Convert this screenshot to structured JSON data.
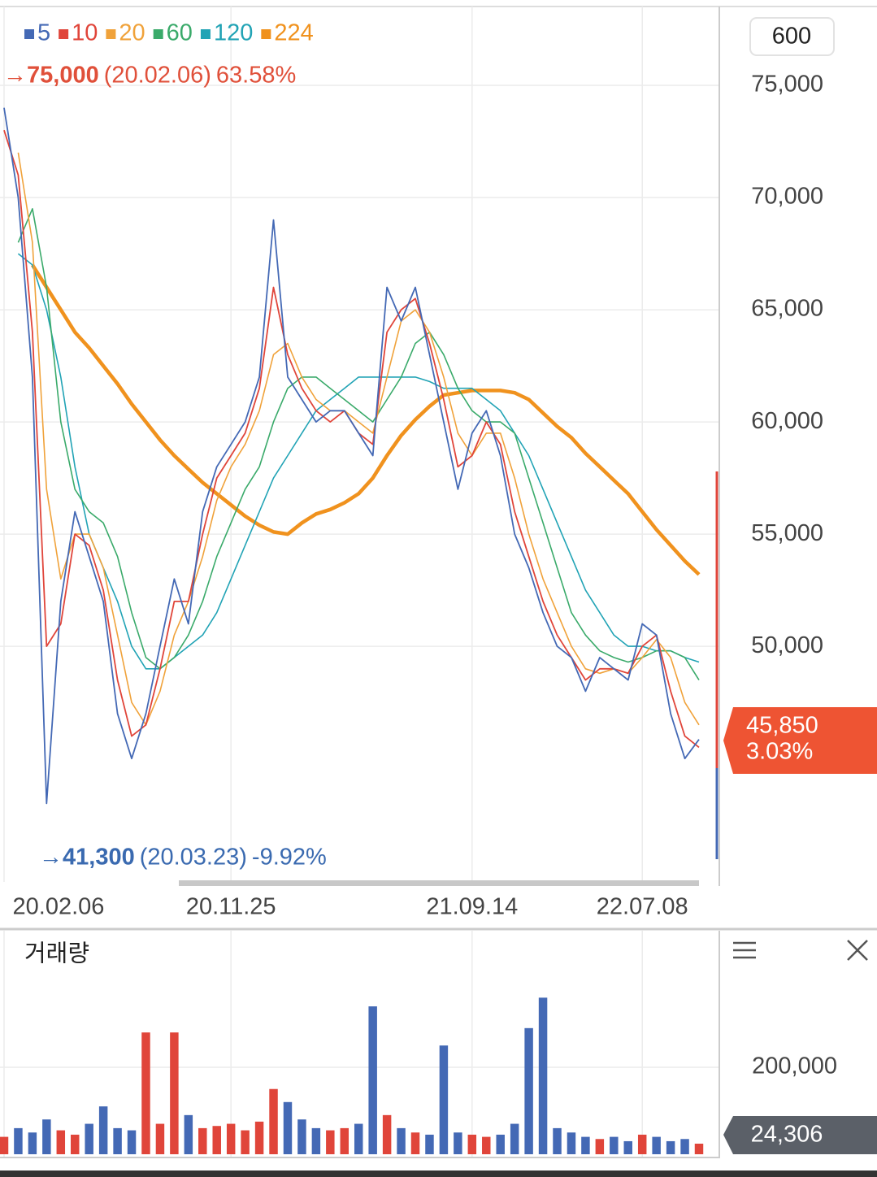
{
  "chart_data": {
    "type": "line",
    "period": "600",
    "categories": [
      "20.02.06",
      null,
      null,
      null,
      null,
      null,
      null,
      null,
      null,
      null,
      null,
      null,
      null,
      null,
      null,
      null,
      "20.11.25",
      null,
      null,
      null,
      null,
      null,
      null,
      null,
      null,
      null,
      null,
      null,
      null,
      null,
      null,
      null,
      null,
      "21.09.14",
      null,
      null,
      null,
      null,
      null,
      null,
      null,
      null,
      null,
      null,
      null,
      "22.07.08",
      null,
      null,
      null,
      null
    ],
    "ylim": [
      39500,
      78442
    ],
    "yticks": [
      {
        "value": 50000,
        "label": "50,000"
      },
      {
        "value": 55000,
        "label": "55,000"
      },
      {
        "value": 60000,
        "label": "60,000"
      },
      {
        "value": 65000,
        "label": "65,000"
      },
      {
        "value": 70000,
        "label": "70,000"
      },
      {
        "value": 75000,
        "label": "75,000"
      }
    ],
    "grid": true,
    "series": [
      {
        "name": "5",
        "color": "#4469b5",
        "values": [
          74000,
          70000,
          62000,
          43000,
          52000,
          56000,
          54000,
          52000,
          47000,
          45000,
          47000,
          50000,
          53000,
          51000,
          56000,
          58000,
          59000,
          60000,
          62000,
          69000,
          62000,
          61000,
          60000,
          60500,
          60500,
          59500,
          58500,
          66000,
          64500,
          66000,
          63000,
          60000,
          57000,
          59500,
          60500,
          58500,
          55000,
          53500,
          51500,
          50000,
          49500,
          48000,
          49500,
          49000,
          48500,
          51000,
          50500,
          47000,
          45000,
          45850
        ]
      },
      {
        "name": "10",
        "color": "#e0453a",
        "values": [
          73000,
          71000,
          64000,
          50000,
          51000,
          55000,
          54500,
          52500,
          48500,
          46000,
          46500,
          49000,
          52000,
          52000,
          55000,
          57500,
          58500,
          59500,
          61500,
          66000,
          63000,
          61500,
          60500,
          60000,
          60500,
          59500,
          59000,
          64000,
          65000,
          65500,
          63500,
          61000,
          58000,
          58500,
          60000,
          59000,
          56000,
          54000,
          52000,
          50500,
          49500,
          48500,
          49000,
          49000,
          48800,
          50000,
          50500,
          48000,
          46000,
          45500
        ]
      },
      {
        "name": "20",
        "color": "#f0a23a",
        "values": [
          null,
          72000,
          68000,
          57000,
          53000,
          55000,
          55000,
          53500,
          50500,
          47500,
          46500,
          48000,
          50500,
          52000,
          54000,
          56500,
          58000,
          59000,
          60500,
          63000,
          63500,
          62000,
          61000,
          60500,
          60500,
          60000,
          59500,
          62000,
          64500,
          65000,
          64000,
          62000,
          59500,
          58500,
          59500,
          59500,
          57500,
          55000,
          53000,
          51500,
          50000,
          49000,
          48800,
          49000,
          48800,
          49500,
          50300,
          49500,
          47500,
          46500
        ]
      },
      {
        "name": "60",
        "color": "#3aaa6a",
        "values": [
          null,
          68000,
          69500,
          66000,
          60000,
          57000,
          56000,
          55500,
          54000,
          51500,
          49500,
          49000,
          49500,
          50500,
          52000,
          54000,
          55500,
          57000,
          58000,
          60000,
          61500,
          62000,
          62000,
          61500,
          61000,
          60500,
          60000,
          61000,
          62000,
          63500,
          64000,
          63000,
          61500,
          60500,
          60000,
          60000,
          59500,
          57500,
          55500,
          53500,
          51500,
          50500,
          49800,
          49500,
          49300,
          49500,
          49800,
          49800,
          49500,
          48500
        ]
      },
      {
        "name": "120",
        "color": "#21a3b5",
        "values": [
          null,
          67500,
          67000,
          65000,
          62000,
          58000,
          55000,
          53500,
          52000,
          50000,
          49000,
          49000,
          49500,
          50000,
          50500,
          51500,
          53000,
          54500,
          56000,
          57500,
          58500,
          59500,
          60500,
          61000,
          61500,
          62000,
          62000,
          62000,
          62000,
          62000,
          61800,
          61500,
          61500,
          61500,
          61000,
          60500,
          59500,
          58500,
          57000,
          55500,
          54000,
          52500,
          51500,
          50500,
          50000,
          50000,
          49800,
          49800,
          49500,
          49300
        ]
      },
      {
        "name": "224",
        "color": "#f0921e",
        "values": [
          null,
          null,
          67000,
          66000,
          65000,
          64000,
          63300,
          62500,
          61700,
          60800,
          60000,
          59200,
          58500,
          57900,
          57300,
          56800,
          56300,
          55800,
          55400,
          55100,
          55000,
          55500,
          55900,
          56100,
          56400,
          56800,
          57500,
          58500,
          59400,
          60100,
          60700,
          61200,
          61300,
          61400,
          61400,
          61400,
          61300,
          61000,
          60400,
          59800,
          59300,
          58600,
          58000,
          57400,
          56800,
          56000,
          55200,
          54500,
          53800,
          53200
        ]
      }
    ],
    "max_label": {
      "price": "→75,000",
      "date": "(20.02.06)",
      "change": "63.58%"
    },
    "min_label": {
      "price": "→41,300",
      "date": "(20.03.23)",
      "change": "-9.92%"
    },
    "current": {
      "price": "45,850",
      "change": "3.03%"
    },
    "volume": {
      "title": "거래량",
      "ylim": [
        0,
        504600
      ],
      "yticks": [
        {
          "value": 200000,
          "label": "200,000"
        }
      ],
      "up_color": "#e0453a",
      "down_color": "#4469b5",
      "values": [
        40000,
        60000,
        50000,
        80000,
        55000,
        45000,
        70000,
        110000,
        60000,
        55000,
        280000,
        70000,
        280000,
        90000,
        60000,
        65000,
        70000,
        55000,
        75000,
        150000,
        120000,
        80000,
        60000,
        55000,
        60000,
        70000,
        340000,
        90000,
        60000,
        50000,
        45000,
        250000,
        50000,
        45000,
        40000,
        45000,
        70000,
        290000,
        360000,
        60000,
        50000,
        40000,
        35000,
        40000,
        30000,
        45000,
        40000,
        30000,
        35000,
        24306
      ],
      "current": "24,306"
    }
  }
}
